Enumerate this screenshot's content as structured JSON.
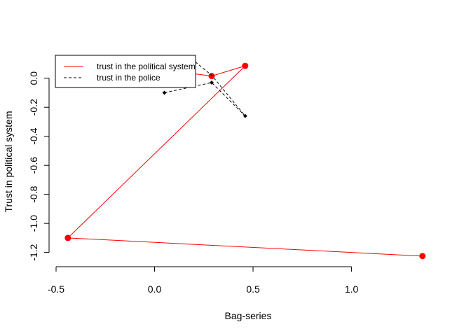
{
  "chart_data": {
    "type": "line",
    "title": "",
    "xlabel": "Bag-series",
    "ylabel": "Trust in political system",
    "xlim": [
      -0.5,
      1.4
    ],
    "ylim": [
      -1.25,
      0.1
    ],
    "x_ticks": [
      -0.5,
      0.0,
      0.5,
      1.0
    ],
    "x_tick_labels": [
      "-0.5",
      "0.0",
      "0.5",
      "1.0"
    ],
    "y_ticks": [
      -1.2,
      -1.0,
      -0.8,
      -0.6,
      -0.4,
      -0.2,
      0.0
    ],
    "y_tick_labels": [
      "-1.2",
      "-1.0",
      "-0.8",
      "-0.6",
      "-0.4",
      "-0.2",
      "0.0"
    ],
    "grid": false,
    "legend_position": "top-left",
    "series": [
      {
        "name": "trust in the political system",
        "color": "#ff0000",
        "line_style": "solid",
        "marker": "circle",
        "x": [
          1.36,
          -0.44,
          0.46,
          0.29,
          -0.05
        ],
        "y": [
          -1.225,
          -1.1,
          0.085,
          0.015,
          0.075
        ]
      },
      {
        "name": "trust in the police",
        "color": "#000000",
        "line_style": "dashed",
        "marker": "diamond",
        "x": [
          0.05,
          0.29,
          0.46,
          0.29,
          0.2
        ],
        "y": [
          -0.1,
          -0.03,
          -0.26,
          0.02,
          0.12
        ]
      }
    ]
  }
}
